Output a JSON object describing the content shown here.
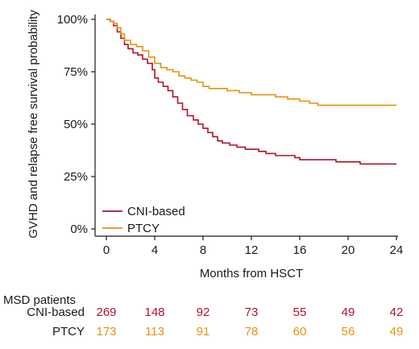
{
  "chart_data": {
    "type": "line",
    "xlabel": "Months from HSCT",
    "ylabel": "GVHD and relapse free survival probability",
    "xlim": [
      0,
      24
    ],
    "ylim": [
      0,
      100
    ],
    "x_ticks": [
      0,
      4,
      8,
      12,
      16,
      20,
      24
    ],
    "y_ticks": [
      "0%",
      "25%",
      "50%",
      "75%",
      "100%"
    ],
    "y_tick_values": [
      0,
      25,
      50,
      75,
      100
    ],
    "grid": false,
    "legend_position": "bottom-left",
    "series": [
      {
        "name": "CNI-based",
        "color": "#b0122f",
        "points": [
          [
            0,
            100
          ],
          [
            0.3,
            99
          ],
          [
            0.6,
            97
          ],
          [
            0.9,
            94
          ],
          [
            1.2,
            91
          ],
          [
            1.5,
            88
          ],
          [
            1.8,
            86
          ],
          [
            2.2,
            84
          ],
          [
            2.6,
            83
          ],
          [
            3.0,
            81
          ],
          [
            3.4,
            79
          ],
          [
            3.8,
            76
          ],
          [
            4.0,
            72
          ],
          [
            4.3,
            70
          ],
          [
            4.7,
            68
          ],
          [
            5.1,
            66
          ],
          [
            5.5,
            63
          ],
          [
            5.9,
            60
          ],
          [
            6.3,
            57
          ],
          [
            6.7,
            54
          ],
          [
            7.2,
            52
          ],
          [
            7.6,
            50
          ],
          [
            8.0,
            48
          ],
          [
            8.4,
            46
          ],
          [
            8.8,
            44
          ],
          [
            9.2,
            42
          ],
          [
            9.6,
            41
          ],
          [
            10.2,
            40
          ],
          [
            10.8,
            39
          ],
          [
            11.5,
            38
          ],
          [
            12.0,
            38
          ],
          [
            12.6,
            37
          ],
          [
            13.2,
            36
          ],
          [
            14.0,
            35
          ],
          [
            15.0,
            35
          ],
          [
            15.6,
            34
          ],
          [
            16.0,
            33
          ],
          [
            17.0,
            33
          ],
          [
            18.0,
            33
          ],
          [
            19.0,
            32
          ],
          [
            20.0,
            32
          ],
          [
            21.0,
            31
          ],
          [
            22.0,
            31
          ],
          [
            23.0,
            31
          ],
          [
            24.0,
            31
          ]
        ]
      },
      {
        "name": "PTCY",
        "color": "#e8920f",
        "points": [
          [
            0,
            100
          ],
          [
            0.3,
            99
          ],
          [
            0.6,
            98
          ],
          [
            0.9,
            96
          ],
          [
            1.2,
            93
          ],
          [
            1.5,
            90
          ],
          [
            2.0,
            88
          ],
          [
            2.5,
            87
          ],
          [
            3.0,
            85
          ],
          [
            3.5,
            82
          ],
          [
            4.0,
            79
          ],
          [
            4.5,
            77
          ],
          [
            5.0,
            76
          ],
          [
            5.5,
            75
          ],
          [
            6.0,
            73
          ],
          [
            6.5,
            72
          ],
          [
            7.0,
            71
          ],
          [
            7.5,
            70
          ],
          [
            8.0,
            68
          ],
          [
            8.5,
            67
          ],
          [
            9.5,
            67
          ],
          [
            10.0,
            66
          ],
          [
            11.0,
            65
          ],
          [
            12.0,
            64
          ],
          [
            13.0,
            64
          ],
          [
            14.0,
            63
          ],
          [
            15.0,
            62
          ],
          [
            16.0,
            61
          ],
          [
            16.8,
            60
          ],
          [
            17.5,
            59
          ],
          [
            18.5,
            59
          ],
          [
            20.0,
            59
          ],
          [
            22.0,
            59
          ],
          [
            24.0,
            59
          ]
        ]
      }
    ],
    "risk_table": {
      "title": "MSD patients",
      "rows": [
        {
          "label": "CNI-based",
          "color": "#b0122f",
          "values": [
            269,
            148,
            92,
            73,
            55,
            49,
            42
          ]
        },
        {
          "label": "PTCY",
          "color": "#e8920f",
          "values": [
            173,
            113,
            91,
            78,
            60,
            56,
            49
          ]
        }
      ]
    }
  }
}
